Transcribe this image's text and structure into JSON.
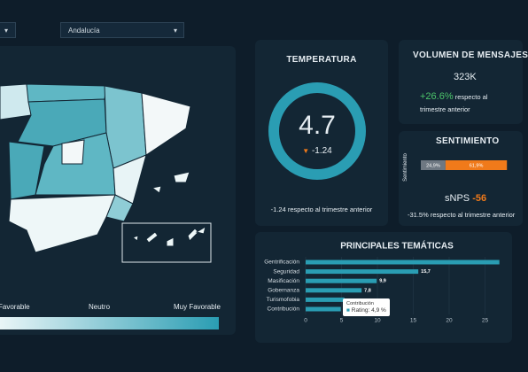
{
  "filters": {
    "first": "▾",
    "region": "Andalucía"
  },
  "legend": {
    "low": "Favorable",
    "mid": "Neutro",
    "high": "Muy Favorable"
  },
  "temperature": {
    "title": "TEMPERATURA",
    "value": 4.7,
    "arrow": "▼",
    "change": -1.24,
    "note": "-1.24 respecto al trimestre anterior"
  },
  "volume": {
    "title": "VOLUMEN DE MENSAJES",
    "value": "323K",
    "change": "+26.6%",
    "note": "respecto al trimestre anterior"
  },
  "sentiment": {
    "title": "SENTIMIENTO",
    "axis_label": "Sentimiento",
    "segments": [
      {
        "value": 24.9,
        "label": "24,9%",
        "color": "#6e7882"
      },
      {
        "value": 61.9,
        "label": "61,9%",
        "color": "#f07a1a"
      }
    ],
    "snps_label": "sNPS",
    "snps": -56,
    "note": "-31.5% respecto al trimestre anterior"
  },
  "chart_data": {
    "type": "bar",
    "orientation": "horizontal",
    "title": "PRINCIPALES TEMÁTICAS",
    "categories": [
      "Gentrificación",
      "Seguridad",
      "Masificación",
      "Gobernanza",
      "Turismofobia",
      "Contribución"
    ],
    "values": [
      27,
      15.7,
      9.9,
      7.8,
      5.4,
      4.9
    ],
    "value_labels": [
      null,
      "15,7",
      "9,9",
      "7,8",
      null,
      null
    ],
    "color": "#2a9db3",
    "xlim": [
      0,
      30
    ],
    "xticks": [
      0,
      5,
      10,
      15,
      20,
      25
    ],
    "grid": true,
    "tooltip": {
      "title": "Contribución",
      "label": "Rating: 4,9 %"
    }
  }
}
